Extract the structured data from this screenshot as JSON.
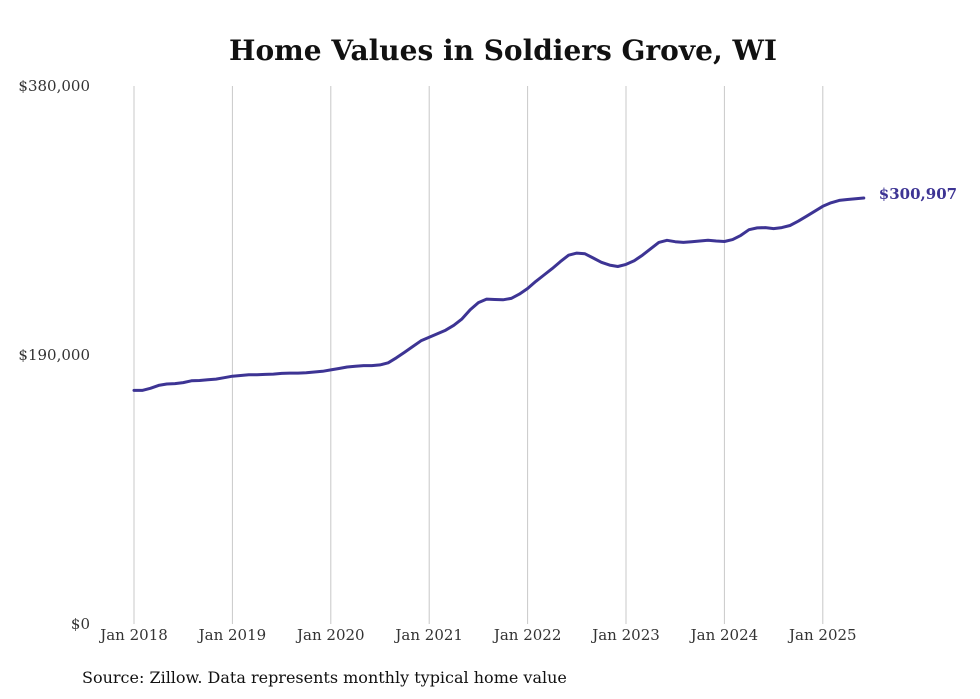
{
  "chart_data": {
    "type": "line",
    "title": "Home Values in Soldiers Grove, WI",
    "source": "Source: Zillow. Data represents monthly typical home value",
    "ylim": [
      0,
      380000
    ],
    "y_ticks": [
      {
        "value": 0,
        "label": "$0"
      },
      {
        "value": 190000,
        "label": "$190,000"
      },
      {
        "value": 380000,
        "label": "$380,000"
      }
    ],
    "x_ticks": [
      {
        "value": "2018-01",
        "label": "Jan 2018"
      },
      {
        "value": "2019-01",
        "label": "Jan 2019"
      },
      {
        "value": "2020-01",
        "label": "Jan 2020"
      },
      {
        "value": "2021-01",
        "label": "Jan 2021"
      },
      {
        "value": "2022-01",
        "label": "Jan 2022"
      },
      {
        "value": "2023-01",
        "label": "Jan 2023"
      },
      {
        "value": "2024-01",
        "label": "Jan 2024"
      },
      {
        "value": "2025-01",
        "label": "Jan 2025"
      }
    ],
    "grid": {
      "vertical": true,
      "horizontal": false
    },
    "line_color": "#3d3494",
    "end_label": "$300,907",
    "series": [
      {
        "points": [
          [
            "2018-01",
            165000
          ],
          [
            "2018-02",
            165000
          ],
          [
            "2018-03",
            166500
          ],
          [
            "2018-04",
            168500
          ],
          [
            "2018-05",
            169500
          ],
          [
            "2018-06",
            169800
          ],
          [
            "2018-07",
            170500
          ],
          [
            "2018-08",
            171800
          ],
          [
            "2018-09",
            172000
          ],
          [
            "2018-10",
            172500
          ],
          [
            "2018-11",
            173000
          ],
          [
            "2018-12",
            174000
          ],
          [
            "2019-01",
            175000
          ],
          [
            "2019-02",
            175500
          ],
          [
            "2019-03",
            176000
          ],
          [
            "2019-04",
            176000
          ],
          [
            "2019-05",
            176300
          ],
          [
            "2019-06",
            176500
          ],
          [
            "2019-07",
            177000
          ],
          [
            "2019-08",
            177200
          ],
          [
            "2019-09",
            177200
          ],
          [
            "2019-10",
            177500
          ],
          [
            "2019-11",
            178000
          ],
          [
            "2019-12",
            178500
          ],
          [
            "2020-01",
            179500
          ],
          [
            "2020-02",
            180500
          ],
          [
            "2020-03",
            181500
          ],
          [
            "2020-04",
            182000
          ],
          [
            "2020-05",
            182500
          ],
          [
            "2020-06",
            182500
          ],
          [
            "2020-07",
            183000
          ],
          [
            "2020-08",
            184500
          ],
          [
            "2020-09",
            188000
          ],
          [
            "2020-10",
            192000
          ],
          [
            "2020-11",
            196000
          ],
          [
            "2020-12",
            200000
          ],
          [
            "2021-01",
            202500
          ],
          [
            "2021-02",
            205000
          ],
          [
            "2021-03",
            207500
          ],
          [
            "2021-04",
            211000
          ],
          [
            "2021-05",
            215500
          ],
          [
            "2021-06",
            222000
          ],
          [
            "2021-07",
            227000
          ],
          [
            "2021-08",
            229500
          ],
          [
            "2021-09",
            229200
          ],
          [
            "2021-10",
            229000
          ],
          [
            "2021-11",
            230000
          ],
          [
            "2021-12",
            233000
          ],
          [
            "2022-01",
            237000
          ],
          [
            "2022-02",
            242000
          ],
          [
            "2022-03",
            246500
          ],
          [
            "2022-04",
            251000
          ],
          [
            "2022-05",
            256000
          ],
          [
            "2022-06",
            260500
          ],
          [
            "2022-07",
            262000
          ],
          [
            "2022-08",
            261500
          ],
          [
            "2022-09",
            258500
          ],
          [
            "2022-10",
            255500
          ],
          [
            "2022-11",
            253500
          ],
          [
            "2022-12",
            252500
          ],
          [
            "2023-01",
            254000
          ],
          [
            "2023-02",
            256500
          ],
          [
            "2023-03",
            260500
          ],
          [
            "2023-04",
            265000
          ],
          [
            "2023-05",
            269500
          ],
          [
            "2023-06",
            271000
          ],
          [
            "2023-07",
            270000
          ],
          [
            "2023-08",
            269500
          ],
          [
            "2023-09",
            270000
          ],
          [
            "2023-10",
            270500
          ],
          [
            "2023-11",
            271000
          ],
          [
            "2023-12",
            270500
          ],
          [
            "2024-01",
            270200
          ],
          [
            "2024-02",
            271500
          ],
          [
            "2024-03",
            274500
          ],
          [
            "2024-04",
            278500
          ],
          [
            "2024-05",
            279800
          ],
          [
            "2024-06",
            280000
          ],
          [
            "2024-07",
            279300
          ],
          [
            "2024-08",
            280000
          ],
          [
            "2024-09",
            281500
          ],
          [
            "2024-10",
            284500
          ],
          [
            "2024-11",
            288000
          ],
          [
            "2024-12",
            291500
          ],
          [
            "2025-01",
            295000
          ],
          [
            "2025-02",
            297500
          ],
          [
            "2025-03",
            299200
          ],
          [
            "2025-04",
            299800
          ],
          [
            "2025-05",
            300300
          ],
          [
            "2025-06",
            300907
          ]
        ]
      }
    ]
  }
}
